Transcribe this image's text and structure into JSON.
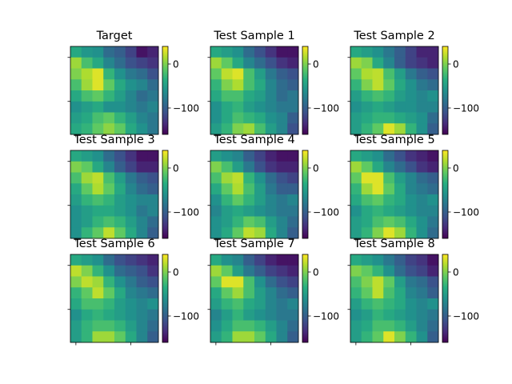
{
  "chart_data": {
    "type": "heatmap",
    "colormap": "viridis",
    "value_range": [
      -160,
      40
    ],
    "colorbar_ticks": [
      0,
      -100
    ],
    "colorbar_tick_labels": [
      "0",
      "−100"
    ],
    "grid": false,
    "layout": {
      "rows": 3,
      "cols": 3
    },
    "panels": [
      {
        "title": "Target",
        "values": [
          [
            -40,
            -55,
            -60,
            -90,
            -100,
            -120,
            -150,
            -140
          ],
          [
            10,
            -20,
            -40,
            -70,
            -90,
            -110,
            -120,
            -130
          ],
          [
            0,
            15,
            30,
            -30,
            -60,
            -80,
            -90,
            -110
          ],
          [
            -20,
            10,
            30,
            -10,
            -40,
            -60,
            -70,
            -90
          ],
          [
            -40,
            -20,
            -10,
            -30,
            -50,
            -70,
            -90,
            -80
          ],
          [
            -60,
            -50,
            -40,
            -60,
            -60,
            -70,
            -80,
            -70
          ],
          [
            -50,
            -40,
            -20,
            -10,
            -30,
            -50,
            -70,
            -80
          ],
          [
            -40,
            -30,
            -10,
            5,
            -10,
            -40,
            -60,
            -80
          ]
        ]
      },
      {
        "title": "Test Sample 1",
        "values": [
          [
            -40,
            -50,
            -60,
            -90,
            -110,
            -130,
            -150,
            -150
          ],
          [
            10,
            -10,
            -40,
            -70,
            -90,
            -110,
            -130,
            -140
          ],
          [
            -10,
            20,
            30,
            -20,
            -50,
            -80,
            -100,
            -110
          ],
          [
            -30,
            0,
            15,
            -20,
            -40,
            -70,
            -90,
            -100
          ],
          [
            -40,
            -20,
            -20,
            -40,
            -50,
            -70,
            -90,
            -80
          ],
          [
            -60,
            -40,
            -30,
            -50,
            -60,
            -70,
            -80,
            -80
          ],
          [
            -60,
            -40,
            -20,
            -30,
            -40,
            -60,
            -70,
            -100
          ],
          [
            -50,
            -30,
            0,
            10,
            -20,
            -50,
            -70,
            -110
          ]
        ]
      },
      {
        "title": "Test Sample 2",
        "values": [
          [
            -40,
            -50,
            -60,
            -80,
            -100,
            -120,
            -140,
            -140
          ],
          [
            10,
            0,
            -40,
            -70,
            -100,
            -120,
            -130,
            -140
          ],
          [
            -10,
            15,
            20,
            -20,
            -50,
            -80,
            -100,
            -110
          ],
          [
            -30,
            0,
            20,
            -10,
            -40,
            -60,
            -80,
            -90
          ],
          [
            -50,
            -30,
            -20,
            -30,
            -50,
            -60,
            -70,
            -60
          ],
          [
            -60,
            -50,
            -40,
            -50,
            -60,
            -60,
            -70,
            -70
          ],
          [
            -50,
            -40,
            -30,
            -30,
            -40,
            -50,
            -60,
            -90
          ],
          [
            -50,
            -30,
            -10,
            30,
            10,
            -30,
            -60,
            -100
          ]
        ]
      },
      {
        "title": "Test Sample 3",
        "values": [
          [
            -40,
            -50,
            -60,
            -90,
            -110,
            -130,
            -150,
            -150
          ],
          [
            0,
            -10,
            -40,
            -70,
            -100,
            -120,
            -140,
            -140
          ],
          [
            -20,
            10,
            20,
            -20,
            -50,
            -80,
            -100,
            -110
          ],
          [
            -40,
            -10,
            15,
            -10,
            -40,
            -70,
            -90,
            -100
          ],
          [
            -50,
            -30,
            -20,
            -30,
            -50,
            -60,
            -70,
            -70
          ],
          [
            -60,
            -50,
            -40,
            -40,
            -50,
            -60,
            -80,
            -70
          ],
          [
            -60,
            -50,
            -30,
            -20,
            -30,
            -50,
            -70,
            -90
          ],
          [
            -60,
            -30,
            -10,
            20,
            -10,
            -40,
            -70,
            -100
          ]
        ]
      },
      {
        "title": "Test Sample 4",
        "values": [
          [
            -50,
            -60,
            -70,
            -100,
            -120,
            -140,
            -150,
            -150
          ],
          [
            0,
            -20,
            -50,
            -80,
            -110,
            -130,
            -140,
            -140
          ],
          [
            -20,
            10,
            20,
            -30,
            -60,
            -90,
            -110,
            -120
          ],
          [
            -40,
            -10,
            15,
            -20,
            -50,
            -80,
            -100,
            -100
          ],
          [
            -60,
            -30,
            -10,
            -30,
            -50,
            -70,
            -80,
            -70
          ],
          [
            -70,
            -50,
            -40,
            -50,
            -60,
            -70,
            -80,
            -80
          ],
          [
            -60,
            -50,
            -30,
            -10,
            -20,
            -50,
            -70,
            -90
          ],
          [
            -60,
            -40,
            -10,
            20,
            10,
            -40,
            -70,
            -100
          ]
        ]
      },
      {
        "title": "Test Sample 5",
        "values": [
          [
            -40,
            -50,
            -60,
            -90,
            -110,
            -130,
            -140,
            -150
          ],
          [
            10,
            -10,
            -40,
            -70,
            -90,
            -110,
            -130,
            -140
          ],
          [
            -10,
            30,
            30,
            -20,
            -50,
            -70,
            -90,
            -100
          ],
          [
            -30,
            10,
            30,
            -10,
            -40,
            -70,
            -80,
            -90
          ],
          [
            -40,
            -20,
            -10,
            -30,
            -40,
            -60,
            -70,
            -60
          ],
          [
            -60,
            -40,
            -30,
            -40,
            -50,
            -60,
            -70,
            -70
          ],
          [
            -50,
            -40,
            -20,
            -10,
            -20,
            -40,
            -60,
            -80
          ],
          [
            -50,
            -30,
            0,
            30,
            10,
            -30,
            -60,
            -90
          ]
        ]
      },
      {
        "title": "Test Sample 6",
        "values": [
          [
            -40,
            -50,
            -60,
            -90,
            -110,
            -120,
            -130,
            -140
          ],
          [
            20,
            0,
            -30,
            -60,
            -90,
            -100,
            -110,
            -130
          ],
          [
            0,
            20,
            10,
            -30,
            -60,
            -80,
            -100,
            -110
          ],
          [
            -30,
            -10,
            20,
            -10,
            -40,
            -70,
            -80,
            -90
          ],
          [
            -40,
            -20,
            -20,
            -30,
            -50,
            -60,
            -70,
            -60
          ],
          [
            -60,
            -40,
            -30,
            -40,
            -50,
            -60,
            -70,
            -80
          ],
          [
            -50,
            -30,
            -20,
            -20,
            -30,
            -50,
            -70,
            -90
          ],
          [
            -50,
            -30,
            10,
            10,
            -10,
            -40,
            -70,
            -100
          ]
        ]
      },
      {
        "title": "Test Sample 7",
        "values": [
          [
            -40,
            -60,
            -70,
            -100,
            -120,
            -140,
            -150,
            -150
          ],
          [
            10,
            -10,
            -50,
            -80,
            -100,
            -120,
            -130,
            -140
          ],
          [
            -10,
            30,
            30,
            -20,
            -60,
            -90,
            -110,
            -120
          ],
          [
            -40,
            -10,
            10,
            -20,
            -50,
            -70,
            -90,
            -100
          ],
          [
            -50,
            -30,
            -20,
            -40,
            -50,
            -70,
            -80,
            -70
          ],
          [
            -70,
            -50,
            -30,
            -50,
            -60,
            -70,
            -80,
            -80
          ],
          [
            -60,
            -40,
            -20,
            -20,
            -30,
            -50,
            -70,
            -90
          ],
          [
            -50,
            -30,
            10,
            10,
            -10,
            -40,
            -70,
            -100
          ]
        ]
      },
      {
        "title": "Test Sample 8",
        "values": [
          [
            -40,
            -50,
            -60,
            -80,
            -100,
            -120,
            -130,
            -150
          ],
          [
            0,
            -10,
            -30,
            -60,
            -90,
            -110,
            -120,
            -140
          ],
          [
            -20,
            0,
            20,
            -10,
            -50,
            -80,
            -90,
            -110
          ],
          [
            -30,
            -10,
            20,
            -20,
            -40,
            -70,
            -80,
            -100
          ],
          [
            -50,
            -30,
            -20,
            -30,
            -40,
            -60,
            -70,
            -60
          ],
          [
            -60,
            -50,
            -30,
            -40,
            -50,
            -60,
            -70,
            -80
          ],
          [
            -50,
            -40,
            -20,
            -20,
            -30,
            -50,
            -70,
            -90
          ],
          [
            -50,
            -30,
            -10,
            30,
            0,
            -30,
            -60,
            -100
          ]
        ]
      }
    ]
  }
}
